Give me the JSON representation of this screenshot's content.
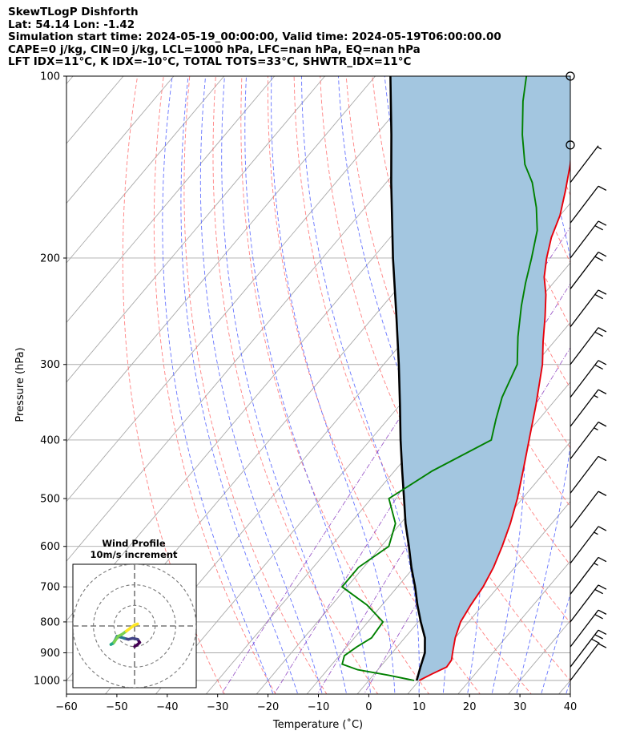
{
  "header": {
    "line1": "SkewTLogP Dishforth",
    "line2": "Lat: 54.14   Lon: -1.42",
    "line3": "Simulation start time: 2024-05-19_00:00:00, Valid time: 2024-05-19T06:00:00.00",
    "line4": "CAPE=0 j/kg, CIN=0 j/kg, LCL=1000 hPa, LFC=nan hPa, EQ=nan hPa",
    "line5": "LFT IDX=11°C, K IDX=-10°C, TOTAL TOTS=33°C, SHWTR_IDX=11°C"
  },
  "chart_data": {
    "type": "line",
    "title": "SkewTLogP Dishforth",
    "xlabel": "Temperature (˚C)",
    "ylabel": "Pressure (hPa)",
    "xlim": [
      -60,
      40
    ],
    "ylim": [
      1050,
      100
    ],
    "y_scale": "log",
    "skew": true,
    "grid": true,
    "x_ticks": [
      "−60",
      "−50",
      "−40",
      "−30",
      "−20",
      "−10",
      "0",
      "10",
      "20",
      "30",
      "40"
    ],
    "y_ticks": [
      "100",
      "200",
      "300",
      "400",
      "500",
      "600",
      "700",
      "800",
      "900",
      "1000"
    ],
    "colors": {
      "temperature": "#e8000b",
      "dewpoint": "#008000",
      "parcel": "#000000",
      "fill": "#a3c6e0",
      "dry_adiabat": "#ff6b6b",
      "moist_adiabat": "#4a5aff",
      "mixing_ratio": "#8c3fbf",
      "isotherm": "#aaaaaa"
    },
    "series": [
      {
        "role": "temperature",
        "values": [
          [
            1000,
            10.0
          ],
          [
            975,
            11.5
          ],
          [
            950,
            13.2
          ],
          [
            925,
            13.0
          ],
          [
            900,
            12.0
          ],
          [
            850,
            10.0
          ],
          [
            800,
            8.4
          ],
          [
            750,
            7.6
          ],
          [
            700,
            7.0
          ],
          [
            650,
            5.8
          ],
          [
            600,
            4.0
          ],
          [
            550,
            1.8
          ],
          [
            500,
            -1.0
          ],
          [
            450,
            -4.5
          ],
          [
            400,
            -8.5
          ],
          [
            350,
            -13.0
          ],
          [
            300,
            -18.5
          ],
          [
            275,
            -22.2
          ],
          [
            250,
            -26.0
          ],
          [
            230,
            -29.5
          ],
          [
            215,
            -32.8
          ],
          [
            200,
            -35.5
          ],
          [
            185,
            -38.0
          ],
          [
            170,
            -40.0
          ],
          [
            155,
            -43.0
          ],
          [
            140,
            -46.5
          ],
          [
            128,
            -50.0
          ],
          [
            115,
            -52.0
          ],
          [
            108,
            -54.0
          ],
          [
            100,
            -56.0
          ]
        ]
      },
      {
        "role": "dewpoint",
        "values": [
          [
            1000,
            9.0
          ],
          [
            980,
            3.0
          ],
          [
            960,
            -4.0
          ],
          [
            940,
            -8.0
          ],
          [
            910,
            -9.0
          ],
          [
            880,
            -8.0
          ],
          [
            850,
            -6.6
          ],
          [
            800,
            -7.0
          ],
          [
            750,
            -13.0
          ],
          [
            700,
            -21.0
          ],
          [
            650,
            -21.0
          ],
          [
            600,
            -18.5
          ],
          [
            550,
            -21.0
          ],
          [
            500,
            -26.5
          ],
          [
            450,
            -22.5
          ],
          [
            400,
            -16.0
          ],
          [
            370,
            -18.5
          ],
          [
            340,
            -21.0
          ],
          [
            300,
            -23.5
          ],
          [
            270,
            -28.0
          ],
          [
            240,
            -32.5
          ],
          [
            220,
            -35.5
          ],
          [
            200,
            -38.5
          ],
          [
            180,
            -42.0
          ],
          [
            165,
            -46.0
          ],
          [
            150,
            -51.0
          ],
          [
            140,
            -55.5
          ],
          [
            125,
            -61.0
          ],
          [
            110,
            -66.5
          ],
          [
            100,
            -70.0
          ]
        ]
      },
      {
        "role": "parcel",
        "values": [
          [
            1000,
            9.5
          ],
          [
            950,
            8.0
          ],
          [
            900,
            6.5
          ],
          [
            850,
            4.0
          ],
          [
            800,
            0.5
          ],
          [
            750,
            -3.0
          ],
          [
            700,
            -6.5
          ],
          [
            650,
            -10.5
          ],
          [
            600,
            -14.5
          ],
          [
            550,
            -19.0
          ],
          [
            500,
            -23.5
          ],
          [
            450,
            -28.5
          ],
          [
            400,
            -34.0
          ],
          [
            350,
            -40.0
          ],
          [
            300,
            -47.0
          ],
          [
            250,
            -55.5
          ],
          [
            200,
            -66.0
          ],
          [
            150,
            -79.0
          ],
          [
            125,
            -87.0
          ],
          [
            100,
            -97.0
          ]
        ]
      }
    ],
    "wind_barbs": [
      {
        "p": 100,
        "barb": "calm"
      },
      {
        "p": 130,
        "barb": "calm"
      },
      {
        "p": 150,
        "barb": "short"
      },
      {
        "p": 175,
        "barb": "1 full"
      },
      {
        "p": 200,
        "barb": "2 full"
      },
      {
        "p": 225,
        "barb": "2 full"
      },
      {
        "p": 260,
        "barb": "2 full"
      },
      {
        "p": 300,
        "barb": "2 full"
      },
      {
        "p": 340,
        "barb": "2 full"
      },
      {
        "p": 380,
        "barb": "1 full + half"
      },
      {
        "p": 430,
        "barb": "1 full + half"
      },
      {
        "p": 490,
        "barb": "1 full"
      },
      {
        "p": 560,
        "barb": "1 full"
      },
      {
        "p": 640,
        "barb": "1 full + half"
      },
      {
        "p": 720,
        "barb": "1 full + half"
      },
      {
        "p": 800,
        "barb": "2 full"
      },
      {
        "p": 880,
        "barb": "2 full"
      },
      {
        "p": 950,
        "barb": "3 full"
      },
      {
        "p": 1000,
        "barb": "1 full"
      }
    ],
    "hodograph": {
      "title_line1": "Wind Profile",
      "title_line2": "10m/s increment",
      "rings_ms": [
        10,
        20,
        30
      ],
      "max_ms": 30,
      "points_uv": [
        [
          0,
          -10
        ],
        [
          1.5,
          -9
        ],
        [
          2.5,
          -8.0
        ],
        [
          1.5,
          -6.5
        ],
        [
          -1.0,
          -6.0
        ],
        [
          -3.0,
          -6.5
        ],
        [
          -5.0,
          -6.0
        ],
        [
          -6.5,
          -5.5
        ],
        [
          -8.5,
          -5.0
        ],
        [
          -9.5,
          -7.0
        ],
        [
          -10.5,
          -8.5
        ],
        [
          -11.5,
          -9.0
        ],
        [
          -10.0,
          -8.0
        ],
        [
          -8.0,
          -5.0
        ],
        [
          -6.0,
          -4.0
        ],
        [
          -4.0,
          -2.5
        ],
        [
          -2.0,
          -1.0
        ],
        [
          0.0,
          0.5
        ],
        [
          1.5,
          1.0
        ]
      ],
      "colormap": [
        "#440154",
        "#414487",
        "#2a788e",
        "#22a884",
        "#7ad151",
        "#fde725"
      ]
    }
  }
}
